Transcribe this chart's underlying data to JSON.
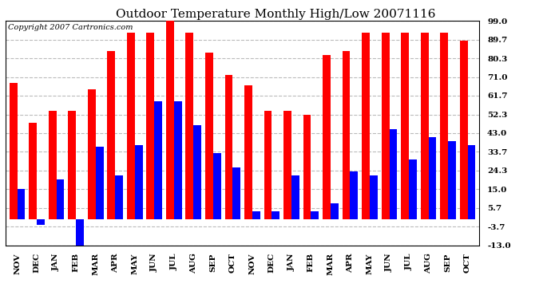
{
  "title": "Outdoor Temperature Monthly High/Low 20071116",
  "copyright": "Copyright 2007 Cartronics.com",
  "months": [
    "NOV",
    "DEC",
    "JAN",
    "FEB",
    "MAR",
    "APR",
    "MAY",
    "JUN",
    "JUL",
    "AUG",
    "SEP",
    "OCT",
    "NOV",
    "DEC",
    "JAN",
    "FEB",
    "MAR",
    "APR",
    "MAY",
    "JUN",
    "JUL",
    "AUG",
    "SEP",
    "OCT"
  ],
  "highs": [
    68,
    48,
    54,
    54,
    65,
    84,
    93,
    93,
    99,
    93,
    83,
    72,
    67,
    54,
    54,
    52,
    82,
    84,
    93,
    93,
    93,
    93,
    93,
    89
  ],
  "lows": [
    15,
    -3,
    20,
    -13,
    36,
    22,
    37,
    59,
    59,
    47,
    33,
    26,
    4,
    4,
    22,
    4,
    8,
    24,
    22,
    45,
    30,
    41,
    39,
    37
  ],
  "yticks": [
    99.0,
    89.7,
    80.3,
    71.0,
    61.7,
    52.3,
    43.0,
    33.7,
    24.3,
    15.0,
    5.7,
    -3.7,
    -13.0
  ],
  "ymin": -13.0,
  "ymax": 99.0,
  "bar_color_high": "#ff0000",
  "bar_color_low": "#0000ff",
  "background_color": "#ffffff",
  "grid_color": "#bbbbbb",
  "title_fontsize": 11,
  "copyright_fontsize": 7,
  "tick_fontsize": 7.5,
  "bar_width": 0.4
}
